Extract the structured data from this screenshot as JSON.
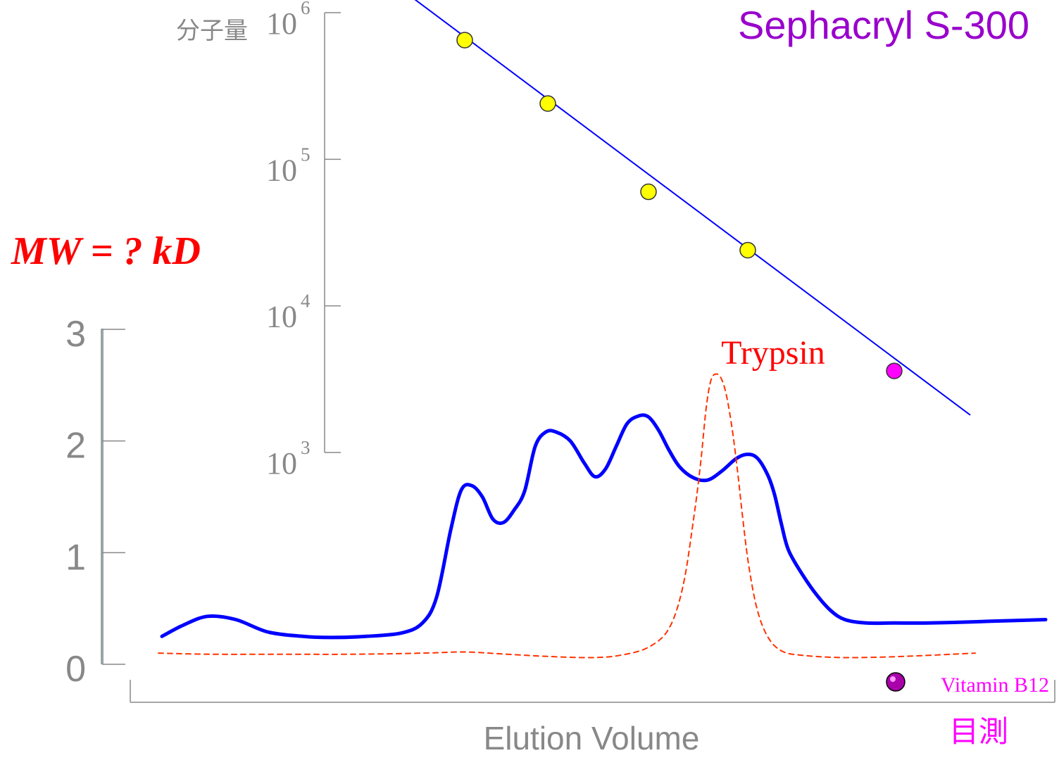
{
  "title": "Sephacryl S-300",
  "question": "MW = ? kD",
  "colors": {
    "title": "#9900cc",
    "question": "#ff0000",
    "axis": "#888888",
    "calibration_line": "#0000ff",
    "standard_point": "#ffff00",
    "unknown_point": "#ff00ff",
    "elution_profile": "#0000ff",
    "trypsin_profile": "#ff3300",
    "vitamin_label": "#ff00ff"
  },
  "labels": {
    "mw_axis": "分子量",
    "x_axis": "Elution Volume",
    "trypsin": "Trypsin",
    "vitamin": "Vitamin B12",
    "visual_estimate": "目測"
  },
  "chart_data": [
    {
      "type": "scatter",
      "title": "Sephacryl S-300",
      "ylabel": "分子量",
      "yscale": "log",
      "ylim": [
        1000,
        1000000
      ],
      "y_ticks": [
        {
          "base": "10",
          "exp": "3",
          "value": 1000
        },
        {
          "base": "10",
          "exp": "4",
          "value": 10000
        },
        {
          "base": "10",
          "exp": "5",
          "value": 100000
        },
        {
          "base": "10",
          "exp": "6",
          "value": 1000000
        }
      ],
      "points": [
        {
          "x": 660,
          "y": 650000,
          "kind": "standard"
        },
        {
          "x": 778,
          "y": 240000,
          "kind": "standard"
        },
        {
          "x": 921,
          "y": 60000,
          "kind": "standard"
        },
        {
          "x": 1062,
          "y": 24000,
          "kind": "standard"
        },
        {
          "x": 1270,
          "y": 3600,
          "kind": "unknown"
        }
      ],
      "fit_line": [
        {
          "x": 578,
          "y": 1350000
        },
        {
          "x": 1378,
          "y": 1800
        }
      ]
    },
    {
      "type": "line",
      "xlabel": "Elution Volume",
      "ylim": [
        0,
        3
      ],
      "y_ticks": [
        0,
        1,
        2,
        3
      ],
      "series": [
        {
          "kind": "elution-profile",
          "x": [
            230,
            260,
            295,
            335,
            380,
            430,
            470,
            520,
            570,
            600,
            620,
            640,
            655,
            670,
            685,
            700,
            715,
            730,
            745,
            760,
            775,
            790,
            810,
            830,
            845,
            860,
            875,
            890,
            905,
            920,
            935,
            950,
            965,
            985,
            1005,
            1025,
            1045,
            1060,
            1075,
            1090,
            1100,
            1110,
            1120,
            1140,
            1160,
            1180,
            1200,
            1230,
            1270,
            1320,
            1380,
            1430,
            1485
          ],
          "y": [
            0.25,
            0.35,
            0.43,
            0.4,
            0.29,
            0.25,
            0.24,
            0.25,
            0.28,
            0.37,
            0.6,
            1.2,
            1.56,
            1.6,
            1.5,
            1.3,
            1.27,
            1.38,
            1.55,
            1.95,
            2.08,
            2.08,
            2.0,
            1.8,
            1.68,
            1.75,
            1.95,
            2.15,
            2.22,
            2.22,
            2.1,
            1.92,
            1.77,
            1.67,
            1.65,
            1.73,
            1.84,
            1.88,
            1.85,
            1.7,
            1.52,
            1.25,
            1.02,
            0.8,
            0.62,
            0.48,
            0.4,
            0.37,
            0.37,
            0.37,
            0.38,
            0.39,
            0.4
          ]
        },
        {
          "kind": "trypsin-profile",
          "x": [
            225,
            300,
            400,
            500,
            600,
            660,
            720,
            780,
            840,
            880,
            920,
            950,
            970,
            985,
            995,
            1003,
            1010,
            1018,
            1025,
            1032,
            1040,
            1048,
            1055,
            1063,
            1075,
            1090,
            1110,
            1140,
            1200,
            1280,
            1385
          ],
          "y": [
            0.1,
            0.09,
            0.09,
            0.09,
            0.1,
            0.11,
            0.09,
            0.07,
            0.06,
            0.08,
            0.15,
            0.32,
            0.7,
            1.3,
            1.8,
            2.3,
            2.55,
            2.6,
            2.55,
            2.4,
            2.1,
            1.7,
            1.3,
            0.9,
            0.5,
            0.25,
            0.12,
            0.08,
            0.06,
            0.07,
            0.1
          ]
        }
      ]
    }
  ]
}
